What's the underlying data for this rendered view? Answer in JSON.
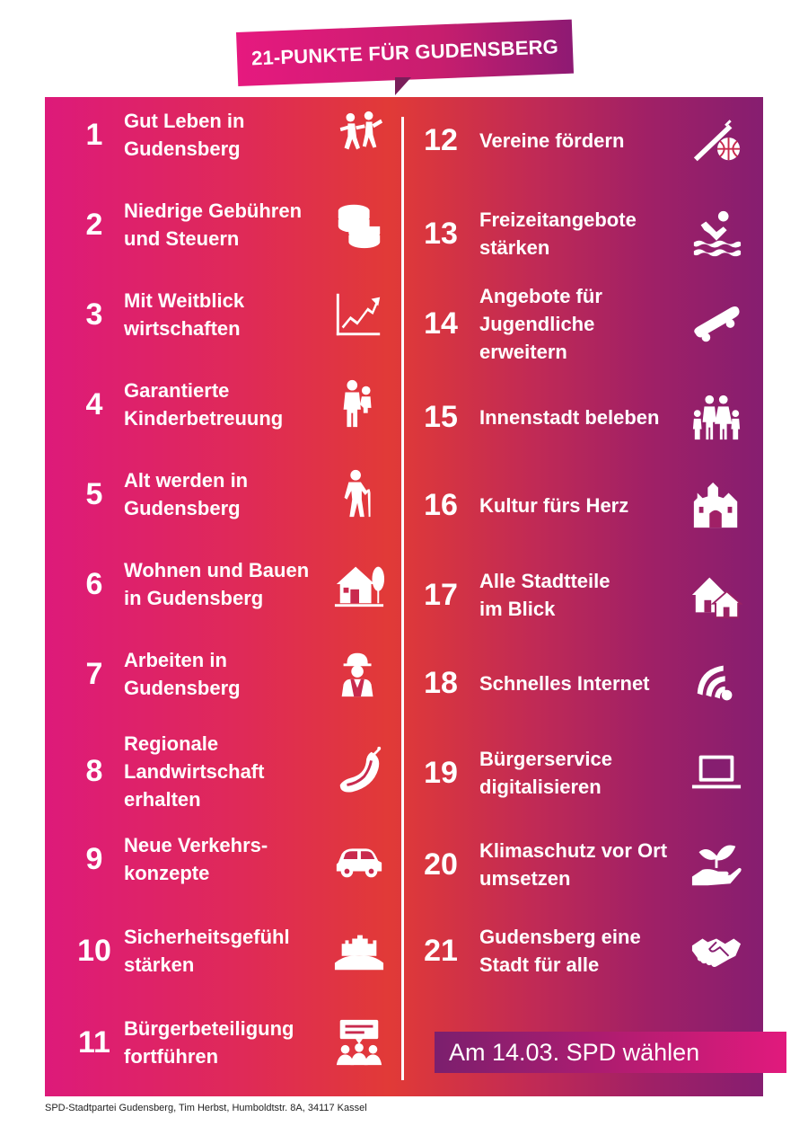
{
  "title": "21-PUNKTE FÜR GUDENSBERG",
  "items": [
    {
      "num": "1",
      "label": "Gut Leben in\nGudensberg",
      "icon": "dancing-people-icon"
    },
    {
      "num": "2",
      "label": "Niedrige Gebühren\nund Steuern",
      "icon": "coins-icon"
    },
    {
      "num": "3",
      "label": "Mit Weitblick\nwirtschaften",
      "icon": "growth-chart-icon"
    },
    {
      "num": "4",
      "label": "Garantierte\nKinderbetreuung",
      "icon": "parent-with-child-icon"
    },
    {
      "num": "5",
      "label": "Alt werden in\nGudensberg",
      "icon": "senior-with-cane-icon"
    },
    {
      "num": "6",
      "label": "Wohnen und Bauen\nin Gudensberg",
      "icon": "house-with-tree-icon"
    },
    {
      "num": "7",
      "label": "Arbeiten in\nGudensberg",
      "icon": "construction-worker-icon"
    },
    {
      "num": "8",
      "label": "Regionale\nLandwirtschaft\nerhalten",
      "icon": "sausage-icon"
    },
    {
      "num": "9",
      "label": "Neue Verkehrs-\nkonzepte",
      "icon": "car-icon"
    },
    {
      "num": "10",
      "label": "Sicherheitsgefühl\nstärken",
      "icon": "castle-hill-icon"
    },
    {
      "num": "11",
      "label": "Bürgerbeteiligung\nfortführen",
      "icon": "group-discussion-icon"
    },
    {
      "num": "12",
      "label": "Vereine fördern",
      "icon": "flute-and-ball-icon"
    },
    {
      "num": "13",
      "label": "Freizeitangebote\nstärken",
      "icon": "swimmer-icon"
    },
    {
      "num": "14",
      "label": "Angebote für\nJugendliche\nerweitern",
      "icon": "skateboard-icon"
    },
    {
      "num": "15",
      "label": "Innenstadt beleben",
      "icon": "family-icon"
    },
    {
      "num": "16",
      "label": "Kultur fürs Herz",
      "icon": "castle-icon"
    },
    {
      "num": "17",
      "label": "Alle Stadtteile\nim Blick",
      "icon": "houses-icon"
    },
    {
      "num": "18",
      "label": "Schnelles Internet",
      "icon": "wifi-signal-icon"
    },
    {
      "num": "19",
      "label": "Bürgerservice\ndigitalisieren",
      "icon": "laptop-icon"
    },
    {
      "num": "20",
      "label": "Klimaschutz vor Ort\numsetzen",
      "icon": "plant-in-hand-icon"
    },
    {
      "num": "21",
      "label": "Gudensberg eine\nStadt für alle",
      "icon": "handshake-icon"
    }
  ],
  "cta": "Am 14.03. SPD wählen",
  "footer": "SPD-Stadtpartei Gudensberg, Tim Herbst, Humboldtstr. 8A, 34117 Kassel",
  "colors": {
    "magenta": "#e6197f",
    "red": "#e13a37",
    "purple": "#861e70",
    "text": "#ffffff"
  }
}
